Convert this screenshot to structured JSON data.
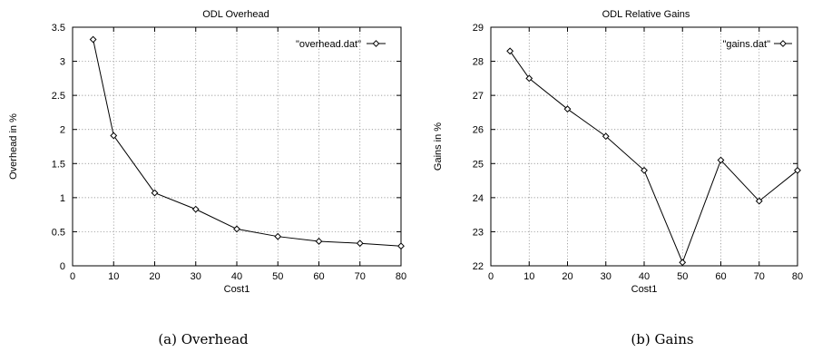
{
  "chart_data": [
    {
      "type": "line",
      "title": "ODL Overhead",
      "xlabel": "Cost1",
      "ylabel": "Overhead in %",
      "xlim": [
        0,
        80
      ],
      "ylim": [
        0,
        3.5
      ],
      "xticks": [
        "0",
        "10",
        "20",
        "30",
        "40",
        "50",
        "60",
        "70",
        "80"
      ],
      "yticks": [
        "0",
        "0.5",
        "1",
        "1.5",
        "2",
        "2.5",
        "3",
        "3.5"
      ],
      "grid": true,
      "legend_position": "top-right",
      "series": [
        {
          "name": "\"overhead.dat\"",
          "x": [
            5,
            10,
            20,
            30,
            40,
            50,
            60,
            70,
            80
          ],
          "values": [
            3.32,
            1.91,
            1.07,
            0.83,
            0.54,
            0.43,
            0.36,
            0.33,
            0.29
          ]
        }
      ],
      "caption": "(a) Overhead"
    },
    {
      "type": "line",
      "title": "ODL Relative Gains",
      "xlabel": "Cost1",
      "ylabel": "Gains in %",
      "xlim": [
        0,
        80
      ],
      "ylim": [
        22,
        29
      ],
      "xticks": [
        "0",
        "10",
        "20",
        "30",
        "40",
        "50",
        "60",
        "70",
        "80"
      ],
      "yticks": [
        "22",
        "23",
        "24",
        "25",
        "26",
        "27",
        "28",
        "29"
      ],
      "grid": true,
      "legend_position": "top-right",
      "series": [
        {
          "name": "\"gains.dat\"",
          "x": [
            5,
            10,
            20,
            30,
            40,
            50,
            60,
            70,
            80
          ],
          "values": [
            28.3,
            27.5,
            26.6,
            25.8,
            24.8,
            22.1,
            25.1,
            23.9,
            24.8
          ]
        }
      ],
      "caption": "(b) Gains"
    }
  ]
}
